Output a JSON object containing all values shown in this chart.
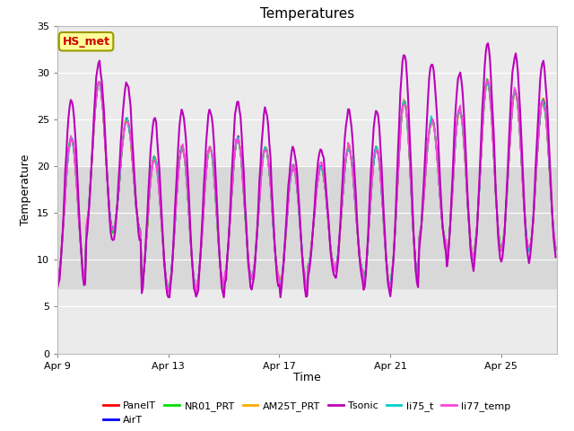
{
  "title": "Temperatures",
  "xlabel": "Time",
  "ylabel": "Temperature",
  "ylim": [
    0,
    35
  ],
  "yticks": [
    0,
    5,
    10,
    15,
    20,
    25,
    30,
    35
  ],
  "xtick_labels": [
    "Apr 9",
    "Apr 13",
    "Apr 17",
    "Apr 21",
    "Apr 25"
  ],
  "xtick_positions": [
    9,
    13,
    17,
    21,
    25
  ],
  "annotation_text": "HS_met",
  "annotation_color": "#cc0000",
  "annotation_bg": "#ffff99",
  "annotation_border": "#999900",
  "shaded_ymin": 7,
  "shaded_ymax": 20,
  "shaded_color": "#d8d8d8",
  "series_order": [
    "PanelT",
    "AirT",
    "NR01_PRT",
    "AM25T_PRT",
    "Tsonic",
    "li75_t",
    "li77_temp"
  ],
  "series": {
    "PanelT": {
      "color": "#ff0000",
      "lw": 1.2
    },
    "AirT": {
      "color": "#0000ff",
      "lw": 1.2
    },
    "NR01_PRT": {
      "color": "#00dd00",
      "lw": 1.2
    },
    "AM25T_PRT": {
      "color": "#ffaa00",
      "lw": 1.2
    },
    "Tsonic": {
      "color": "#bb00bb",
      "lw": 1.5
    },
    "li75_t": {
      "color": "#00cccc",
      "lw": 1.2
    },
    "li77_temp": {
      "color": "#ff44dd",
      "lw": 1.2
    }
  },
  "plot_bg": "#ebebeb",
  "fig_bg": "#ffffff",
  "grid_color": "#ffffff",
  "title_fontsize": 11,
  "label_fontsize": 9,
  "tick_fontsize": 8,
  "legend_fontsize": 8
}
